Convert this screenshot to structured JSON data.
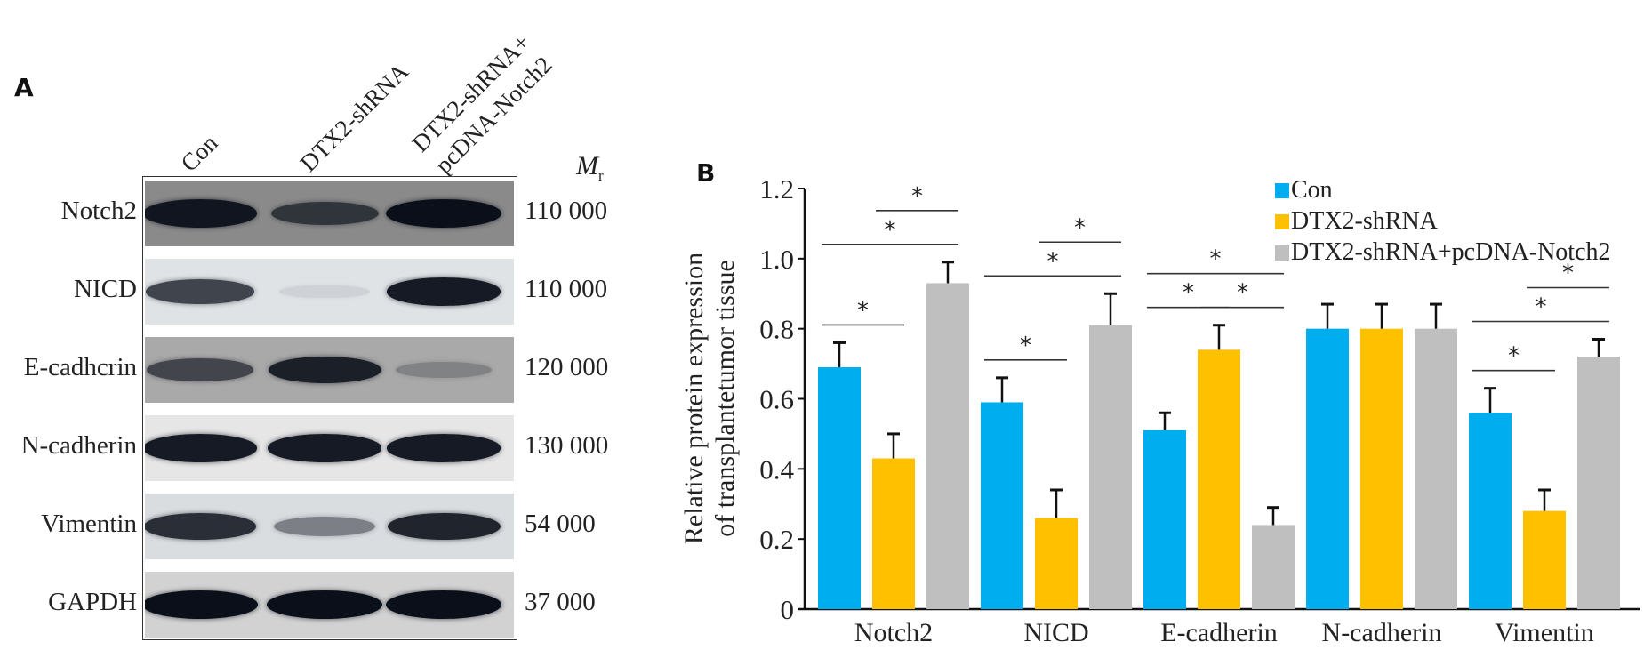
{
  "panel_a": {
    "letter": "A",
    "lanes": [
      "Con",
      "DTX2-shRNA",
      "DTX2-shRNA+",
      "pcDNA-Notch2"
    ],
    "mr_header": "M",
    "mr_sub": "r",
    "rows": [
      {
        "protein": "Notch2",
        "mr": "110 000",
        "bands": [
          0.95,
          0.7,
          1.0
        ],
        "bg": "#8a8a8a"
      },
      {
        "protein": "NICD",
        "mr": "110 000",
        "bands": [
          0.75,
          0.05,
          0.95
        ],
        "bg": "#dfe3e6"
      },
      {
        "protein": "E-cadhcrin",
        "mr": "120 000",
        "bands": [
          0.65,
          0.9,
          0.25
        ],
        "bg": "#a9a9a9"
      },
      {
        "protein": "N-cadherin",
        "mr": "130 000",
        "bands": [
          0.95,
          0.95,
          0.95
        ],
        "bg": "#e6e6e6"
      },
      {
        "protein": "Vimentin",
        "mr": "54 000",
        "bands": [
          0.85,
          0.45,
          0.9
        ],
        "bg": "#d9dde0"
      },
      {
        "protein": "GAPDH",
        "mr": "37 000",
        "bands": [
          1.0,
          1.0,
          1.0
        ],
        "bg": "#d2d2d2"
      }
    ]
  },
  "panel_b": {
    "letter": "B"
  },
  "chart_data": {
    "type": "bar",
    "title": "",
    "xlabel": "",
    "ylabel": [
      "Relative protein expression",
      "of transplantetumor tissue"
    ],
    "ylim": [
      0,
      1.2
    ],
    "yticks": [
      "0",
      "0.2",
      "0.4",
      "0.6",
      "0.8",
      "1.0",
      "1.2"
    ],
    "ytick_values": [
      0,
      0.2,
      0.4,
      0.6,
      0.8,
      1.0,
      1.2
    ],
    "grid": false,
    "legend_position": "top-right",
    "categories": [
      "Notch2",
      "NICD",
      "E-cadherin",
      "N-cadherin",
      "Vimentin"
    ],
    "series": [
      {
        "name": "Con",
        "color": "#00AEEF",
        "values": [
          0.69,
          0.59,
          0.51,
          0.8,
          0.56
        ],
        "errors": [
          0.07,
          0.07,
          0.05,
          0.07,
          0.07
        ]
      },
      {
        "name": "DTX2-shRNA",
        "color": "#FFC000",
        "values": [
          0.43,
          0.26,
          0.74,
          0.8,
          0.28
        ],
        "errors": [
          0.07,
          0.08,
          0.07,
          0.07,
          0.06
        ]
      },
      {
        "name": "DTX2-shRNA+pcDNA-Notch2",
        "color": "#BFBFBF",
        "values": [
          0.93,
          0.81,
          0.24,
          0.8,
          0.72
        ],
        "errors": [
          0.06,
          0.09,
          0.05,
          0.07,
          0.05
        ]
      }
    ],
    "significance": [
      {
        "category": "Notch2",
        "pairs": [
          [
            0,
            1
          ],
          [
            0,
            2
          ],
          [
            1,
            2
          ]
        ],
        "label": "*"
      },
      {
        "category": "NICD",
        "pairs": [
          [
            0,
            1
          ],
          [
            0,
            2
          ],
          [
            1,
            2
          ]
        ],
        "label": "*"
      },
      {
        "category": "E-cadherin",
        "pairs": [
          [
            0,
            1
          ],
          [
            1,
            2
          ],
          [
            0,
            2
          ]
        ],
        "label": "*"
      },
      {
        "category": "Vimentin",
        "pairs": [
          [
            0,
            1
          ],
          [
            0,
            2
          ],
          [
            1,
            2
          ]
        ],
        "label": "*"
      }
    ]
  }
}
